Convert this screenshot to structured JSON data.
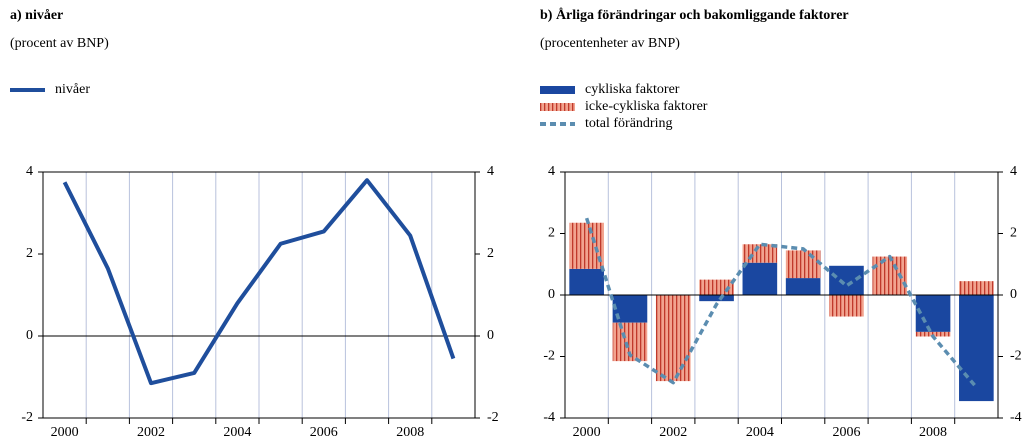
{
  "chart_data": [
    {
      "type": "line",
      "title": "a) nivåer",
      "subtitle": "(procent av BNP)",
      "categories": [
        "2000",
        null,
        "2002",
        null,
        "2004",
        null,
        "2006",
        null,
        "2008",
        null
      ],
      "series": [
        {
          "name": "nivåer",
          "color": "#1f4e9c",
          "type": "line",
          "values": [
            3.75,
            1.65,
            -1.15,
            -0.9,
            0.8,
            2.25,
            2.55,
            3.8,
            2.45,
            -0.55
          ]
        }
      ],
      "ylim": [
        -2,
        4
      ],
      "yticks": [
        -2,
        0,
        2,
        4
      ],
      "y2lim": [
        -2,
        4
      ],
      "y2ticks": [
        -2,
        0,
        2,
        4
      ]
    },
    {
      "type": "bar",
      "title": "b) Årliga förändringar och bakomliggande faktorer",
      "subtitle": "(procentenheter av BNP)",
      "categories": [
        "2000",
        null,
        "2002",
        null,
        "2004",
        null,
        "2006",
        null,
        "2008",
        null
      ],
      "series": [
        {
          "name": "cykliska faktorer",
          "color": "#1a47a0",
          "type": "bar",
          "values": [
            0.85,
            -0.9,
            0,
            -0.2,
            1.05,
            0.55,
            0.95,
            0,
            -1.2,
            -3.45
          ]
        },
        {
          "name": "icke-cykliska faktorer",
          "color": "#f2a38f",
          "type": "bar",
          "values": [
            1.5,
            -1.25,
            -2.8,
            0.5,
            0.6,
            0.9,
            -0.7,
            1.25,
            -0.15,
            0.45
          ]
        },
        {
          "name": "total förändring",
          "color": "#5b8db0",
          "type": "line",
          "values": [
            2.5,
            -1.95,
            -2.85,
            -0.3,
            1.65,
            1.5,
            0.3,
            1.25,
            -1.35,
            -3.0
          ]
        }
      ],
      "ylim": [
        -4,
        4
      ],
      "yticks": [
        -4,
        -2,
        0,
        2,
        4
      ],
      "y2lim": [
        -4,
        4
      ],
      "y2ticks": [
        -4,
        -2,
        0,
        2,
        4
      ]
    }
  ]
}
